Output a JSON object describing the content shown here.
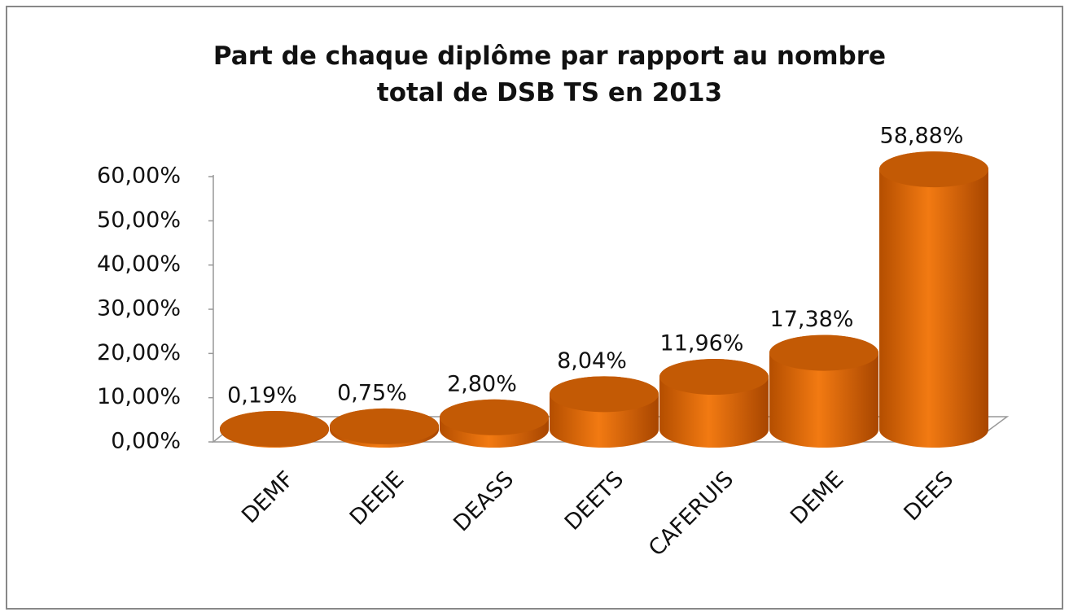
{
  "chart_data": {
    "type": "bar3d",
    "title": "Part de chaque diplôme par rapport au nombre total de DSB TS en 2013",
    "categories": [
      "DEMF",
      "DEEJE",
      "DEASS",
      "DEETS",
      "CAFERUIS",
      "DEME",
      "DEES"
    ],
    "values": [
      0.19,
      0.75,
      2.8,
      8.04,
      11.96,
      17.38,
      58.88
    ],
    "value_labels": [
      "0,19%",
      "0,75%",
      "2,80%",
      "8,04%",
      "11,96%",
      "17,38%",
      "58,88%"
    ],
    "color": "#e8730c",
    "ylim": [
      0,
      60
    ],
    "yticks": [
      {
        "value": 0,
        "label": "0,00%"
      },
      {
        "value": 10,
        "label": "10,00%"
      },
      {
        "value": 20,
        "label": "20,00%"
      },
      {
        "value": 30,
        "label": "30,00%"
      },
      {
        "value": 40,
        "label": "40,00%"
      },
      {
        "value": 50,
        "label": "50,00%"
      },
      {
        "value": 60,
        "label": "60,00%"
      }
    ]
  }
}
